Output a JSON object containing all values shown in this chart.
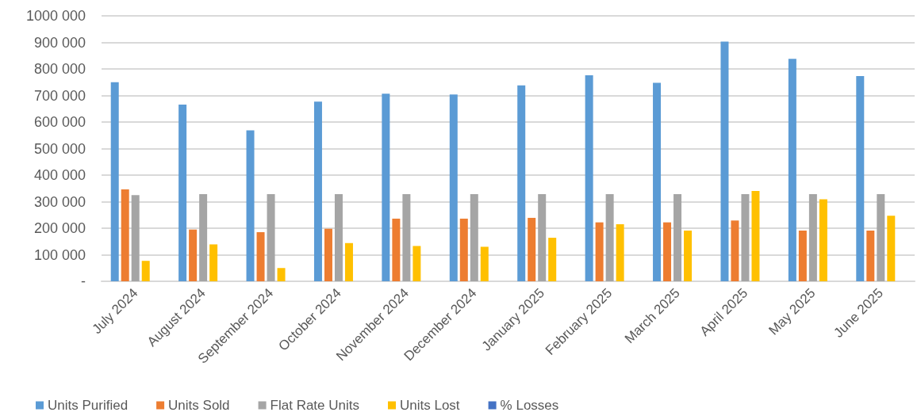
{
  "chart_data": {
    "type": "bar",
    "categories": [
      "July 2024",
      "August 2024",
      "September 2024",
      "October 2024",
      "November 2024",
      "December 2024",
      "January 2025",
      "February 2025",
      "March 2025",
      "April 2025",
      "May 2025",
      "June 2025"
    ],
    "series": [
      {
        "name": "Units Purified",
        "color": "#5b9bd5",
        "values": [
          750000,
          666000,
          569000,
          677000,
          707000,
          704000,
          738000,
          776000,
          748000,
          903000,
          838000,
          773000
        ]
      },
      {
        "name": "Units Sold",
        "color": "#ed7d31",
        "values": [
          346000,
          195000,
          185000,
          198000,
          236000,
          236000,
          239000,
          222000,
          222000,
          229000,
          191000,
          191000
        ]
      },
      {
        "name": "Flat Rate Units",
        "color": "#a5a5a5",
        "values": [
          325000,
          328000,
          328000,
          328000,
          328000,
          328000,
          328000,
          328000,
          328000,
          328000,
          328000,
          328000
        ]
      },
      {
        "name": "Units Lost",
        "color": "#ffc000",
        "values": [
          77000,
          139000,
          50000,
          144000,
          133000,
          130000,
          164000,
          215000,
          191000,
          340000,
          309000,
          247000
        ]
      },
      {
        "name": "% Losses",
        "color": "#4472c4",
        "values": [
          null,
          null,
          null,
          null,
          null,
          null,
          null,
          null,
          null,
          null,
          null,
          null
        ]
      }
    ],
    "ylim": [
      0,
      1000000
    ],
    "yticks": [
      {
        "value": 0,
        "label": "-"
      },
      {
        "value": 100000,
        "label": "100 000"
      },
      {
        "value": 200000,
        "label": "200 000"
      },
      {
        "value": 300000,
        "label": "300 000"
      },
      {
        "value": 400000,
        "label": "400 000"
      },
      {
        "value": 500000,
        "label": "500 000"
      },
      {
        "value": 600000,
        "label": "600 000"
      },
      {
        "value": 700000,
        "label": "700 000"
      },
      {
        "value": 800000,
        "label": "800 000"
      },
      {
        "value": 900000,
        "label": "900 000"
      },
      {
        "value": 1000000,
        "label": "1000 000"
      }
    ],
    "grid": "y",
    "legend": "bottom"
  }
}
